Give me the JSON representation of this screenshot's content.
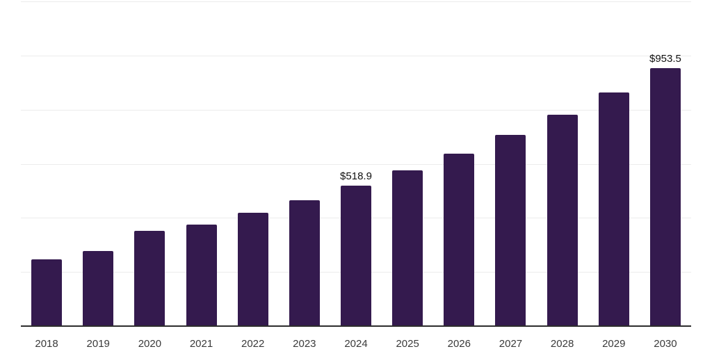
{
  "chart_data": {
    "type": "bar",
    "title": "",
    "xlabel": "",
    "ylabel": "",
    "categories": [
      "2018",
      "2019",
      "2020",
      "2021",
      "2022",
      "2023",
      "2024",
      "2025",
      "2026",
      "2027",
      "2028",
      "2029",
      "2030"
    ],
    "values": [
      247,
      277,
      352,
      375,
      418,
      465,
      518.9,
      576,
      637,
      707,
      782,
      864,
      953.5
    ],
    "data_labels": [
      {
        "category": "2024",
        "text": "$518.9"
      },
      {
        "category": "2030",
        "text": "$953.5"
      }
    ],
    "ylim": [
      0,
      1200
    ],
    "gridline_interval": 200,
    "grid": true,
    "legend": false,
    "colors": {
      "bar": "#341a4e",
      "gridline": "#ececec",
      "axis_line": "#2d2d2d",
      "x_label_text": "#3a3a3a",
      "data_label_text": "#111111",
      "background": "#ffffff"
    }
  }
}
